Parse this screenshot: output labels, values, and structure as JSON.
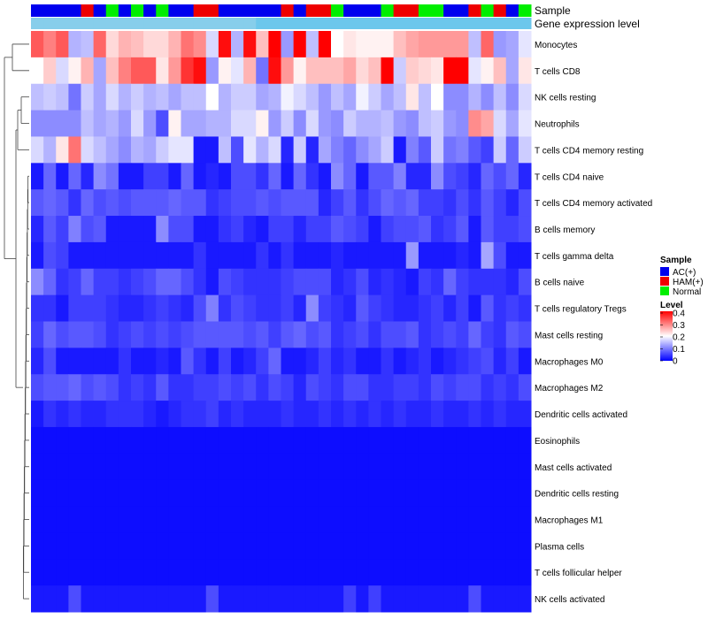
{
  "chart_data": {
    "type": "heatmap",
    "annotation_labels": [
      "Sample",
      "Gene expression level"
    ],
    "row_labels": [
      "Monocytes",
      "T cells CD8",
      "NK cells resting",
      "Neutrophils",
      "T cells CD4 memory resting",
      "T cells CD4 naive",
      "T cells CD4 memory activated",
      "B cells memory",
      "T cells gamma delta",
      "B cells naive",
      "T cells regulatory  Tregs",
      "Mast cells resting",
      "Macrophages M0",
      "Macrophages M2",
      "Dendritic cells activated",
      "Eosinophils",
      "Mast cells activated",
      "Dendritic cells resting",
      "Macrophages M1",
      "Plasma cells",
      "T cells follicular helper",
      "NK cells activated"
    ],
    "sample_groups": [
      "A",
      "A",
      "A",
      "A",
      "H",
      "A",
      "N",
      "A",
      "N",
      "A",
      "N",
      "A",
      "A",
      "H",
      "H",
      "A",
      "A",
      "A",
      "A",
      "A",
      "H",
      "A",
      "H",
      "H",
      "N",
      "A",
      "A",
      "A",
      "N",
      "H",
      "H",
      "N",
      "N",
      "A",
      "A",
      "H",
      "N",
      "H",
      "A",
      "N"
    ],
    "gene_expression_level": [
      "high",
      "high",
      "high",
      "high",
      "high",
      "high",
      "high",
      "high",
      "high",
      "high",
      "high",
      "high",
      "high",
      "high",
      "high",
      "high",
      "high",
      "high",
      "low",
      "low",
      "low",
      "low",
      "low",
      "low",
      "low",
      "low",
      "low",
      "low",
      "low",
      "low",
      "low",
      "low",
      "low",
      "low",
      "low",
      "low",
      "low",
      "low",
      "low",
      "low"
    ],
    "values": [
      [
        0.33,
        0.3,
        0.33,
        0.14,
        0.15,
        0.32,
        0.23,
        0.26,
        0.25,
        0.23,
        0.23,
        0.26,
        0.31,
        0.29,
        0.17,
        0.39,
        0.14,
        0.39,
        0.25,
        0.41,
        0.12,
        0.41,
        0.15,
        0.4,
        0.2,
        0.22,
        0.21,
        0.21,
        0.21,
        0.25,
        0.27,
        0.28,
        0.28,
        0.28,
        0.28,
        0.15,
        0.32,
        0.12,
        0.13,
        0.18
      ],
      [
        0.2,
        0.24,
        0.17,
        0.21,
        0.26,
        0.13,
        0.25,
        0.3,
        0.33,
        0.33,
        0.22,
        0.28,
        0.36,
        0.39,
        0.12,
        0.21,
        0.18,
        0.26,
        0.09,
        0.39,
        0.28,
        0.21,
        0.25,
        0.25,
        0.25,
        0.27,
        0.23,
        0.25,
        0.43,
        0.16,
        0.24,
        0.23,
        0.22,
        0.43,
        0.4,
        0.18,
        0.21,
        0.25,
        0.13,
        0.22
      ],
      [
        0.15,
        0.16,
        0.15,
        0.09,
        0.16,
        0.13,
        0.17,
        0.14,
        0.16,
        0.14,
        0.15,
        0.13,
        0.15,
        0.15,
        0.2,
        0.14,
        0.16,
        0.16,
        0.13,
        0.14,
        0.19,
        0.17,
        0.15,
        0.12,
        0.15,
        0.13,
        0.19,
        0.16,
        0.13,
        0.15,
        0.22,
        0.15,
        0.2,
        0.11,
        0.11,
        0.14,
        0.11,
        0.15,
        0.11,
        0.17
      ],
      [
        0.11,
        0.11,
        0.11,
        0.11,
        0.15,
        0.13,
        0.14,
        0.12,
        0.17,
        0.12,
        0.06,
        0.21,
        0.13,
        0.13,
        0.14,
        0.14,
        0.17,
        0.17,
        0.21,
        0.12,
        0.16,
        0.11,
        0.17,
        0.12,
        0.11,
        0.16,
        0.14,
        0.14,
        0.15,
        0.12,
        0.11,
        0.15,
        0.16,
        0.12,
        0.11,
        0.29,
        0.27,
        0.17,
        0.13,
        0.18
      ],
      [
        0.17,
        0.14,
        0.22,
        0.31,
        0.17,
        0.15,
        0.13,
        0.11,
        0.14,
        0.13,
        0.16,
        0.18,
        0.18,
        0.02,
        0.02,
        0.15,
        0.06,
        0.18,
        0.14,
        0.17,
        0.03,
        0.16,
        0.03,
        0.13,
        0.1,
        0.08,
        0.11,
        0.13,
        0.16,
        0.02,
        0.1,
        0.07,
        0.16,
        0.09,
        0.1,
        0.07,
        0.05,
        0.16,
        0.08,
        0.16
      ],
      [
        0.02,
        0.08,
        0.02,
        0.08,
        0.03,
        0.11,
        0.09,
        0.02,
        0.02,
        0.05,
        0.05,
        0.02,
        0.08,
        0.02,
        0.03,
        0.02,
        0.06,
        0.06,
        0.04,
        0.08,
        0.02,
        0.08,
        0.04,
        0.02,
        0.11,
        0.08,
        0.02,
        0.07,
        0.07,
        0.1,
        0.03,
        0.03,
        0.11,
        0.06,
        0.05,
        0.03,
        0.08,
        0.06,
        0.08,
        0.03
      ],
      [
        0.07,
        0.08,
        0.07,
        0.04,
        0.08,
        0.06,
        0.07,
        0.06,
        0.07,
        0.07,
        0.07,
        0.08,
        0.07,
        0.07,
        0.04,
        0.05,
        0.06,
        0.06,
        0.07,
        0.06,
        0.07,
        0.07,
        0.07,
        0.03,
        0.05,
        0.07,
        0.04,
        0.06,
        0.08,
        0.07,
        0.08,
        0.05,
        0.05,
        0.04,
        0.06,
        0.04,
        0.07,
        0.05,
        0.03,
        0.06
      ],
      [
        0.03,
        0.07,
        0.05,
        0.1,
        0.06,
        0.07,
        0.02,
        0.02,
        0.02,
        0.02,
        0.11,
        0.06,
        0.06,
        0.02,
        0.02,
        0.04,
        0.05,
        0.03,
        0.02,
        0.05,
        0.05,
        0.03,
        0.05,
        0.05,
        0.07,
        0.06,
        0.05,
        0.02,
        0.05,
        0.06,
        0.06,
        0.07,
        0.04,
        0.05,
        0.07,
        0.02,
        0.07,
        0.05,
        0.05,
        0.06
      ],
      [
        0.02,
        0.06,
        0.05,
        0.02,
        0.02,
        0.02,
        0.02,
        0.02,
        0.02,
        0.02,
        0.02,
        0.02,
        0.02,
        0.04,
        0.02,
        0.02,
        0.02,
        0.02,
        0.04,
        0.02,
        0.04,
        0.02,
        0.02,
        0.02,
        0.03,
        0.02,
        0.02,
        0.02,
        0.02,
        0.02,
        0.12,
        0.02,
        0.02,
        0.02,
        0.03,
        0.02,
        0.13,
        0.06,
        0.02,
        0.02
      ],
      [
        0.11,
        0.08,
        0.04,
        0.05,
        0.08,
        0.05,
        0.05,
        0.04,
        0.05,
        0.06,
        0.08,
        0.08,
        0.06,
        0.04,
        0.02,
        0.06,
        0.05,
        0.04,
        0.04,
        0.04,
        0.05,
        0.06,
        0.06,
        0.06,
        0.03,
        0.04,
        0.06,
        0.03,
        0.04,
        0.03,
        0.02,
        0.05,
        0.04,
        0.08,
        0.05,
        0.04,
        0.04,
        0.04,
        0.03,
        0.06
      ],
      [
        0.04,
        0.04,
        0.02,
        0.05,
        0.05,
        0.05,
        0.04,
        0.03,
        0.03,
        0.04,
        0.05,
        0.04,
        0.03,
        0.06,
        0.1,
        0.04,
        0.06,
        0.05,
        0.04,
        0.04,
        0.05,
        0.03,
        0.11,
        0.05,
        0.04,
        0.03,
        0.07,
        0.05,
        0.04,
        0.03,
        0.03,
        0.04,
        0.05,
        0.03,
        0.05,
        0.02,
        0.07,
        0.04,
        0.05,
        0.04
      ],
      [
        0.05,
        0.08,
        0.06,
        0.07,
        0.07,
        0.06,
        0.04,
        0.05,
        0.06,
        0.05,
        0.06,
        0.05,
        0.06,
        0.07,
        0.07,
        0.07,
        0.07,
        0.06,
        0.07,
        0.05,
        0.07,
        0.08,
        0.06,
        0.07,
        0.04,
        0.05,
        0.06,
        0.04,
        0.06,
        0.06,
        0.07,
        0.04,
        0.05,
        0.06,
        0.05,
        0.08,
        0.05,
        0.04,
        0.07,
        0.06
      ],
      [
        0.03,
        0.06,
        0.02,
        0.02,
        0.02,
        0.02,
        0.02,
        0.04,
        0.02,
        0.02,
        0.03,
        0.02,
        0.07,
        0.04,
        0.02,
        0.05,
        0.02,
        0.03,
        0.05,
        0.08,
        0.02,
        0.02,
        0.03,
        0.05,
        0.03,
        0.04,
        0.02,
        0.02,
        0.04,
        0.02,
        0.03,
        0.04,
        0.02,
        0.03,
        0.04,
        0.05,
        0.06,
        0.03,
        0.05,
        0.02
      ],
      [
        0.06,
        0.07,
        0.07,
        0.08,
        0.06,
        0.07,
        0.06,
        0.04,
        0.05,
        0.04,
        0.07,
        0.04,
        0.04,
        0.05,
        0.05,
        0.06,
        0.05,
        0.06,
        0.04,
        0.06,
        0.05,
        0.03,
        0.06,
        0.05,
        0.04,
        0.06,
        0.06,
        0.04,
        0.04,
        0.05,
        0.05,
        0.04,
        0.06,
        0.05,
        0.06,
        0.06,
        0.04,
        0.05,
        0.04,
        0.06
      ],
      [
        0.02,
        0.04,
        0.03,
        0.04,
        0.03,
        0.03,
        0.04,
        0.04,
        0.04,
        0.03,
        0.02,
        0.03,
        0.04,
        0.04,
        0.05,
        0.03,
        0.04,
        0.03,
        0.03,
        0.03,
        0.04,
        0.03,
        0.03,
        0.04,
        0.03,
        0.04,
        0.03,
        0.04,
        0.03,
        0.04,
        0.03,
        0.03,
        0.04,
        0.03,
        0.03,
        0.04,
        0.03,
        0.04,
        0.03,
        0.03
      ],
      [
        0.01,
        0.01,
        0.01,
        0.01,
        0.01,
        0.01,
        0.01,
        0.01,
        0.01,
        0.01,
        0.01,
        0.01,
        0.01,
        0.01,
        0.01,
        0.01,
        0.01,
        0.01,
        0.01,
        0.01,
        0.01,
        0.01,
        0.01,
        0.01,
        0.01,
        0.01,
        0.01,
        0.01,
        0.01,
        0.01,
        0.01,
        0.01,
        0.01,
        0.01,
        0.01,
        0.01,
        0.01,
        0.01,
        0.01,
        0.01
      ],
      [
        0.01,
        0.01,
        0.01,
        0.01,
        0.01,
        0.01,
        0.01,
        0.01,
        0.01,
        0.01,
        0.01,
        0.01,
        0.01,
        0.01,
        0.01,
        0.01,
        0.01,
        0.01,
        0.01,
        0.01,
        0.01,
        0.01,
        0.01,
        0.01,
        0.01,
        0.01,
        0.01,
        0.01,
        0.01,
        0.01,
        0.01,
        0.01,
        0.01,
        0.01,
        0.01,
        0.01,
        0.01,
        0.01,
        0.01,
        0.01
      ],
      [
        0.01,
        0.01,
        0.01,
        0.01,
        0.01,
        0.01,
        0.01,
        0.01,
        0.01,
        0.01,
        0.01,
        0.01,
        0.01,
        0.01,
        0.01,
        0.01,
        0.01,
        0.01,
        0.01,
        0.01,
        0.01,
        0.01,
        0.01,
        0.01,
        0.01,
        0.01,
        0.01,
        0.01,
        0.01,
        0.01,
        0.01,
        0.01,
        0.01,
        0.01,
        0.01,
        0.01,
        0.01,
        0.01,
        0.01,
        0.01
      ],
      [
        0.01,
        0.01,
        0.01,
        0.01,
        0.01,
        0.01,
        0.01,
        0.01,
        0.01,
        0.01,
        0.01,
        0.01,
        0.01,
        0.01,
        0.01,
        0.01,
        0.01,
        0.01,
        0.01,
        0.01,
        0.01,
        0.01,
        0.01,
        0.01,
        0.01,
        0.01,
        0.01,
        0.01,
        0.01,
        0.01,
        0.01,
        0.01,
        0.01,
        0.01,
        0.01,
        0.01,
        0.01,
        0.01,
        0.01,
        0.01
      ],
      [
        0.01,
        0.01,
        0.01,
        0.01,
        0.01,
        0.01,
        0.01,
        0.01,
        0.01,
        0.01,
        0.01,
        0.01,
        0.01,
        0.01,
        0.01,
        0.01,
        0.01,
        0.01,
        0.01,
        0.01,
        0.01,
        0.01,
        0.01,
        0.01,
        0.01,
        0.01,
        0.01,
        0.01,
        0.01,
        0.01,
        0.01,
        0.01,
        0.01,
        0.01,
        0.01,
        0.01,
        0.01,
        0.01,
        0.01,
        0.01
      ],
      [
        0.01,
        0.01,
        0.01,
        0.01,
        0.01,
        0.01,
        0.01,
        0.01,
        0.01,
        0.01,
        0.01,
        0.01,
        0.01,
        0.01,
        0.01,
        0.01,
        0.01,
        0.01,
        0.01,
        0.01,
        0.01,
        0.01,
        0.01,
        0.01,
        0.01,
        0.01,
        0.01,
        0.01,
        0.01,
        0.01,
        0.01,
        0.01,
        0.01,
        0.01,
        0.01,
        0.01,
        0.01,
        0.01,
        0.01,
        0.01
      ],
      [
        0.02,
        0.02,
        0.02,
        0.06,
        0.02,
        0.02,
        0.02,
        0.02,
        0.02,
        0.02,
        0.02,
        0.02,
        0.02,
        0.02,
        0.06,
        0.02,
        0.02,
        0.02,
        0.02,
        0.02,
        0.02,
        0.02,
        0.02,
        0.02,
        0.02,
        0.05,
        0.02,
        0.05,
        0.02,
        0.02,
        0.02,
        0.02,
        0.02,
        0.02,
        0.02,
        0.06,
        0.02,
        0.02,
        0.02,
        0.02
      ]
    ],
    "legend_sample": {
      "title": "Sample",
      "entries": [
        {
          "label": "AC(+)",
          "color": "#0000EE"
        },
        {
          "label": "HAM(+)",
          "color": "#EE0000"
        },
        {
          "label": "Normal",
          "color": "#00EE00"
        }
      ]
    },
    "legend_level": {
      "title": "Level",
      "ticks": [
        "0.4",
        "0.3",
        "0.2",
        "0.1",
        "0"
      ],
      "range": [
        0,
        0.4
      ]
    },
    "colors": {
      "low": "#0000FF",
      "mid": "#FFFFFF",
      "high": "#FF0000",
      "expr_high": "#87CEEB",
      "expr_low": "#6CC7EC"
    }
  }
}
